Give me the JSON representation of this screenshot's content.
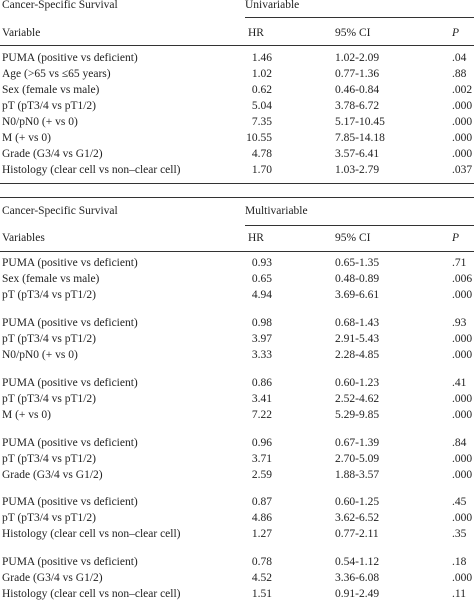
{
  "tables": [
    {
      "title": "Cancer-Specific Survival",
      "group_header": "Univariable",
      "columns": [
        "Variable",
        "HR",
        "95% CI",
        "P"
      ],
      "groups": [
        [
          [
            "PUMA (positive vs deficient)",
            "1.46",
            "1.02-2.09",
            ".04"
          ],
          [
            "Age (>65 vs ≤65 years)",
            "1.02",
            "0.77-1.36",
            ".88"
          ],
          [
            "Sex (female vs male)",
            "0.62",
            "0.46-0.84",
            ".002"
          ],
          [
            "pT (pT3/4 vs pT1/2)",
            "5.04",
            "3.78-6.72",
            ".000"
          ],
          [
            "N0/pN0 (+ vs 0)",
            "7.35",
            "5.17-10.45",
            ".000"
          ],
          [
            "M (+ vs 0)",
            "10.55",
            "7.85-14.18",
            ".000"
          ],
          [
            "Grade (G3/4 vs G1/2)",
            "4.78",
            "3.57-6.41",
            ".000"
          ],
          [
            "Histology (clear cell vs non–clear cell)",
            "1.70",
            "1.03-2.79",
            ".037"
          ]
        ]
      ]
    },
    {
      "title": "Cancer-Specific Survival",
      "group_header": "Multivariable",
      "columns": [
        "Variables",
        "HR",
        "95% CI",
        "P"
      ],
      "groups": [
        [
          [
            "PUMA (positive vs deficient)",
            "0.93",
            "0.65-1.35",
            ".71"
          ],
          [
            "Sex (female vs male)",
            "0.65",
            "0.48-0.89",
            ".006"
          ],
          [
            "pT (pT3/4 vs pT1/2)",
            "4.94",
            "3.69-6.61",
            ".000"
          ]
        ],
        [
          [
            "PUMA (positive vs deficient)",
            "0.98",
            "0.68-1.43",
            ".93"
          ],
          [
            "pT (pT3/4 vs pT1/2)",
            "3.97",
            "2.91-5.43",
            ".000"
          ],
          [
            "N0/pN0 (+ vs 0)",
            "3.33",
            "2.28-4.85",
            ".000"
          ]
        ],
        [
          [
            "PUMA (positive vs deficient)",
            "0.86",
            "0.60-1.23",
            ".41"
          ],
          [
            "pT (pT3/4 vs pT1/2)",
            "3.41",
            "2.52-4.62",
            ".000"
          ],
          [
            "M (+ vs 0)",
            "7.22",
            "5.29-9.85",
            ".000"
          ]
        ],
        [
          [
            "PUMA (positive vs deficient)",
            "0.96",
            "0.67-1.39",
            ".84"
          ],
          [
            "pT (pT3/4 vs pT1/2)",
            "3.71",
            "2.70-5.09",
            ".000"
          ],
          [
            "Grade (G3/4 vs G1/2)",
            "2.59",
            "1.88-3.57",
            ".000"
          ]
        ],
        [
          [
            "PUMA (positive vs deficient)",
            "0.87",
            "0.60-1.25",
            ".45"
          ],
          [
            "pT (pT3/4 vs pT1/2)",
            "4.86",
            "3.62-6.52",
            ".000"
          ],
          [
            "Histology (clear cell vs non–clear cell)",
            "1.27",
            "0.77-2.11",
            ".35"
          ]
        ],
        [
          [
            "PUMA (positive vs deficient)",
            "0.78",
            "0.54-1.12",
            ".18"
          ],
          [
            "Grade (G3/4 vs G1/2)",
            "4.52",
            "3.36-6.08",
            ".000"
          ],
          [
            "Histology (clear cell vs non–clear cell)",
            "1.51",
            "0.91-2.49",
            ".11"
          ]
        ]
      ]
    }
  ]
}
